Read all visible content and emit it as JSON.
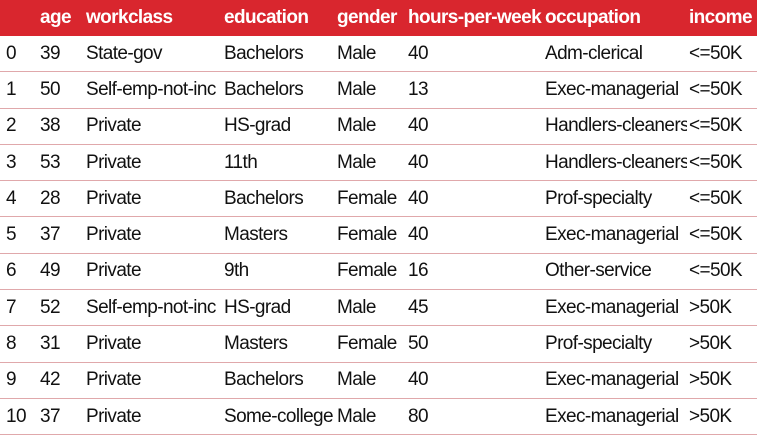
{
  "table": {
    "columns": [
      "",
      "age",
      "workclass",
      "education",
      "gender",
      "hours-per-week",
      "occupation",
      "income"
    ],
    "rows": [
      [
        "0",
        "39",
        "State-gov",
        "Bachelors",
        "Male",
        "40",
        "Adm-clerical",
        "<=50K"
      ],
      [
        "1",
        "50",
        "Self-emp-not-inc",
        "Bachelors",
        "Male",
        "13",
        "Exec-managerial",
        "<=50K"
      ],
      [
        "2",
        "38",
        "Private",
        "HS-grad",
        "Male",
        "40",
        "Handlers-cleaners",
        "<=50K"
      ],
      [
        "3",
        "53",
        "Private",
        "11th",
        "Male",
        "40",
        "Handlers-cleaners",
        "<=50K"
      ],
      [
        "4",
        "28",
        "Private",
        "Bachelors",
        "Female",
        "40",
        "Prof-specialty",
        "<=50K"
      ],
      [
        "5",
        "37",
        "Private",
        "Masters",
        "Female",
        "40",
        "Exec-managerial",
        "<=50K"
      ],
      [
        "6",
        "49",
        "Private",
        "9th",
        "Female",
        "16",
        "Other-service",
        "<=50K"
      ],
      [
        "7",
        "52",
        "Self-emp-not-inc",
        "HS-grad",
        "Male",
        "45",
        "Exec-managerial",
        ">50K"
      ],
      [
        "8",
        "31",
        "Private",
        "Masters",
        "Female",
        "50",
        "Prof-specialty",
        ">50K"
      ],
      [
        "9",
        "42",
        "Private",
        "Bachelors",
        "Male",
        "40",
        "Exec-managerial",
        ">50K"
      ],
      [
        "10",
        "37",
        "Private",
        "Some-college",
        "Male",
        "80",
        "Exec-managerial",
        ">50K"
      ]
    ]
  },
  "colors": {
    "header_bg": "#d9262e",
    "header_text": "#ffffff",
    "row_divider": "#e0a8ab"
  }
}
